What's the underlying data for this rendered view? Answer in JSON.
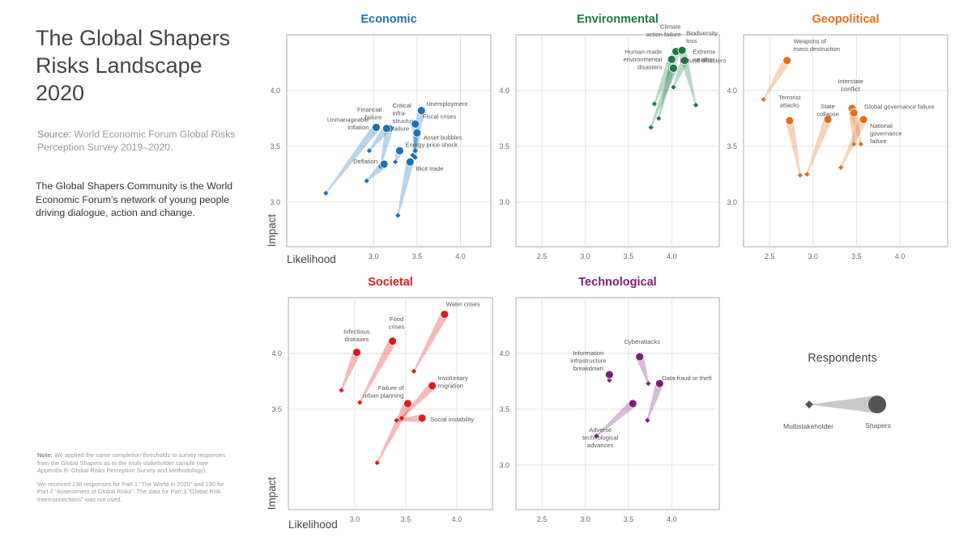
{
  "page": {
    "title": "The Global Shapers Risks Landscape 2020",
    "source_label": "Source:",
    "source_text": "World Economic Forum Global Risks Perception Survey 2019–2020.",
    "description": "The Global Shapers Community is the World Economic Forum’s network of young people driving dialogue, action and change.",
    "note_label": "Note:",
    "note_text_1": "We applied the same completion thresholds to survey responses from the Global Shapers as to the multi-stakeholder sample (see Appendix B: Global Risks Perception Survey and Methodology).",
    "note_text_2": "We received 236 responses for Part 1 “The World in 2020” and 190 for Part 2 “Assessment of Global Risks”. The data for Part 3 “Global Risk Interconnections” was not used."
  },
  "axes": {
    "x_label": "Likelihood",
    "y_label": "Impact"
  },
  "legend": {
    "title": "Respondents",
    "multistakeholder_label": "Multistakeholder",
    "shapers_label": "Shapers"
  },
  "colors": {
    "Economic": "#1f6fb6",
    "Environmental": "#1a7a44",
    "Geopolitical": "#e0701f",
    "Societal": "#e0191f",
    "Technological": "#7b1e7a",
    "grid": "#dddddd",
    "frame": "#aaaaaa"
  },
  "chart_data": [
    {
      "type": "scatter",
      "title": "Economic",
      "xlim": [
        2.0,
        4.35
      ],
      "ylim": [
        2.6,
        4.5
      ],
      "xticks": [
        3.0,
        3.5,
        4.0
      ],
      "yticks": [
        3.0,
        3.5,
        4.0
      ],
      "series": [
        {
          "name": "Unemployment",
          "label": [
            "Unemployment"
          ],
          "shapers": [
            3.55,
            3.82
          ],
          "multi": [
            3.45,
            3.42
          ]
        },
        {
          "name": "Critical infrastructure failure",
          "label": [
            "Critical",
            "infra-",
            "structure",
            "failure"
          ],
          "shapers": [
            3.18,
            3.66
          ],
          "multi": [
            3.08,
            3.32
          ]
        },
        {
          "name": "Financial failure",
          "label": [
            "Financial",
            "failure"
          ],
          "shapers": [
            3.15,
            3.66
          ],
          "multi": [
            2.95,
            3.46
          ]
        },
        {
          "name": "Unmanageable inflation",
          "label": [
            "Unmanageable",
            "inflation"
          ],
          "shapers": [
            3.03,
            3.67
          ],
          "multi": [
            2.45,
            3.08
          ]
        },
        {
          "name": "Fiscal crises",
          "label": [
            "Fiscal crises"
          ],
          "shapers": [
            3.48,
            3.7
          ],
          "multi": [
            3.48,
            3.46
          ]
        },
        {
          "name": "Asset bubbles",
          "label": [
            "Asset bubbles"
          ],
          "shapers": [
            3.5,
            3.62
          ],
          "multi": [
            3.48,
            3.4
          ]
        },
        {
          "name": "Energy price shock",
          "label": [
            "Energy price shock"
          ],
          "shapers": [
            3.3,
            3.46
          ],
          "multi": [
            3.25,
            3.36
          ]
        },
        {
          "name": "Deflation",
          "label": [
            "Deflation"
          ],
          "shapers": [
            3.12,
            3.34
          ],
          "multi": [
            2.92,
            3.19
          ]
        },
        {
          "name": "Illicit trade",
          "label": [
            "Illicit trade"
          ],
          "shapers": [
            3.42,
            3.36
          ],
          "multi": [
            3.28,
            2.88
          ]
        }
      ]
    },
    {
      "type": "scatter",
      "title": "Environmental",
      "xlim": [
        2.2,
        4.55
      ],
      "ylim": [
        2.6,
        4.5
      ],
      "xticks": [
        2.5,
        3.0,
        3.5,
        4.0
      ],
      "yticks": [
        3.0,
        3.5,
        4.0
      ],
      "series": [
        {
          "name": "Climate action failure",
          "label": [
            "Climate",
            "action failure"
          ],
          "shapers": [
            4.05,
            4.35
          ],
          "multi": [
            3.85,
            3.75
          ]
        },
        {
          "name": "Biodiversity loss",
          "label": [
            "Biodiversity",
            "loss"
          ],
          "shapers": [
            4.12,
            4.36
          ],
          "multi": [
            4.28,
            3.87
          ]
        },
        {
          "name": "Human-made environmental disasters",
          "label": [
            "Human-made",
            "environmental",
            "disasters"
          ],
          "shapers": [
            4.0,
            4.28
          ],
          "multi": [
            3.8,
            3.88
          ]
        },
        {
          "name": "Extreme weather",
          "label": [
            "Extreme",
            "weather"
          ],
          "shapers": [
            4.15,
            4.27
          ],
          "multi": [
            4.02,
            4.03
          ]
        },
        {
          "name": "Natural disasters",
          "label": [
            "Natural disasters"
          ],
          "shapers": [
            4.02,
            4.2
          ],
          "multi": [
            3.76,
            3.67
          ]
        }
      ]
    },
    {
      "type": "scatter",
      "title": "Geopolitical",
      "xlim": [
        2.2,
        4.55
      ],
      "ylim": [
        2.6,
        4.5
      ],
      "xticks": [
        2.5,
        3.0,
        3.5,
        4.0
      ],
      "yticks": [
        3.0,
        3.5,
        4.0
      ],
      "series": [
        {
          "name": "Weapons of mass destruction",
          "label": [
            "Weapons of",
            "mass destruction"
          ],
          "shapers": [
            2.7,
            4.27
          ],
          "multi": [
            2.43,
            3.92
          ]
        },
        {
          "name": "Terrorist attacks",
          "label": [
            "Terrorist",
            "attacks"
          ],
          "shapers": [
            2.73,
            3.73
          ],
          "multi": [
            2.85,
            3.24
          ]
        },
        {
          "name": "State collapse",
          "label": [
            "State",
            "collapse"
          ],
          "shapers": [
            3.17,
            3.74
          ],
          "multi": [
            2.93,
            3.25
          ]
        },
        {
          "name": "Interstate conflict",
          "label": [
            "Interstate",
            "conflict"
          ],
          "shapers": [
            3.45,
            3.84
          ],
          "multi": [
            3.47,
            3.52
          ]
        },
        {
          "name": "Global governance failure",
          "label": [
            "Global governance failure"
          ],
          "shapers": [
            3.47,
            3.8
          ],
          "multi": [
            3.55,
            3.52
          ]
        },
        {
          "name": "National governance failure",
          "label": [
            "National",
            "governance",
            "failure"
          ],
          "shapers": [
            3.58,
            3.74
          ],
          "multi": [
            3.32,
            3.31
          ]
        }
      ]
    },
    {
      "type": "scatter",
      "title": "Societal",
      "xlim": [
        2.35,
        4.35
      ],
      "ylim": [
        2.6,
        4.5
      ],
      "xticks": [
        3.0,
        3.5,
        4.0
      ],
      "yticks": [
        3.5,
        4.0
      ],
      "series": [
        {
          "name": "Water crises",
          "label": [
            "Water crises"
          ],
          "shapers": [
            3.88,
            4.35
          ],
          "multi": [
            3.58,
            3.84
          ]
        },
        {
          "name": "Food crises",
          "label": [
            "Food",
            "crises"
          ],
          "shapers": [
            3.37,
            4.11
          ],
          "multi": [
            3.05,
            3.56
          ]
        },
        {
          "name": "Infectious diseases",
          "label": [
            "Infectious",
            "diseases"
          ],
          "shapers": [
            3.02,
            4.01
          ],
          "multi": [
            2.87,
            3.67
          ]
        },
        {
          "name": "Involuntary migration",
          "label": [
            "Involuntary",
            "migration"
          ],
          "shapers": [
            3.76,
            3.71
          ],
          "multi": [
            3.46,
            3.42
          ]
        },
        {
          "name": "Failure of urban planning",
          "label": [
            "Failure of",
            "urban planning"
          ],
          "shapers": [
            3.52,
            3.55
          ],
          "multi": [
            3.22,
            3.02
          ]
        },
        {
          "name": "Social instability",
          "label": [
            "Social instability"
          ],
          "shapers": [
            3.66,
            3.42
          ],
          "multi": [
            3.41,
            3.4
          ]
        }
      ]
    },
    {
      "type": "scatter",
      "title": "Technological",
      "xlim": [
        2.2,
        4.55
      ],
      "ylim": [
        2.6,
        4.5
      ],
      "xticks": [
        2.5,
        3.0,
        3.5,
        4.0
      ],
      "yticks": [
        3.0,
        3.5,
        4.0
      ],
      "series": [
        {
          "name": "Information infrastructure breakdown",
          "label": [
            "Information",
            "infrastructure",
            "breakdown"
          ],
          "shapers": [
            3.28,
            3.81
          ],
          "multi": [
            3.28,
            3.76
          ]
        },
        {
          "name": "Cyberattacks",
          "label": [
            "Cyberattacks"
          ],
          "shapers": [
            3.63,
            3.97
          ],
          "multi": [
            3.73,
            3.73
          ]
        },
        {
          "name": "Data fraud or theft",
          "label": [
            "Data fraud or theft"
          ],
          "shapers": [
            3.86,
            3.73
          ],
          "multi": [
            3.72,
            3.4
          ]
        },
        {
          "name": "Adverse technological advances",
          "label": [
            "Adverse",
            "technological",
            "advances"
          ],
          "shapers": [
            3.55,
            3.55
          ],
          "multi": [
            3.13,
            3.26
          ]
        }
      ]
    }
  ]
}
